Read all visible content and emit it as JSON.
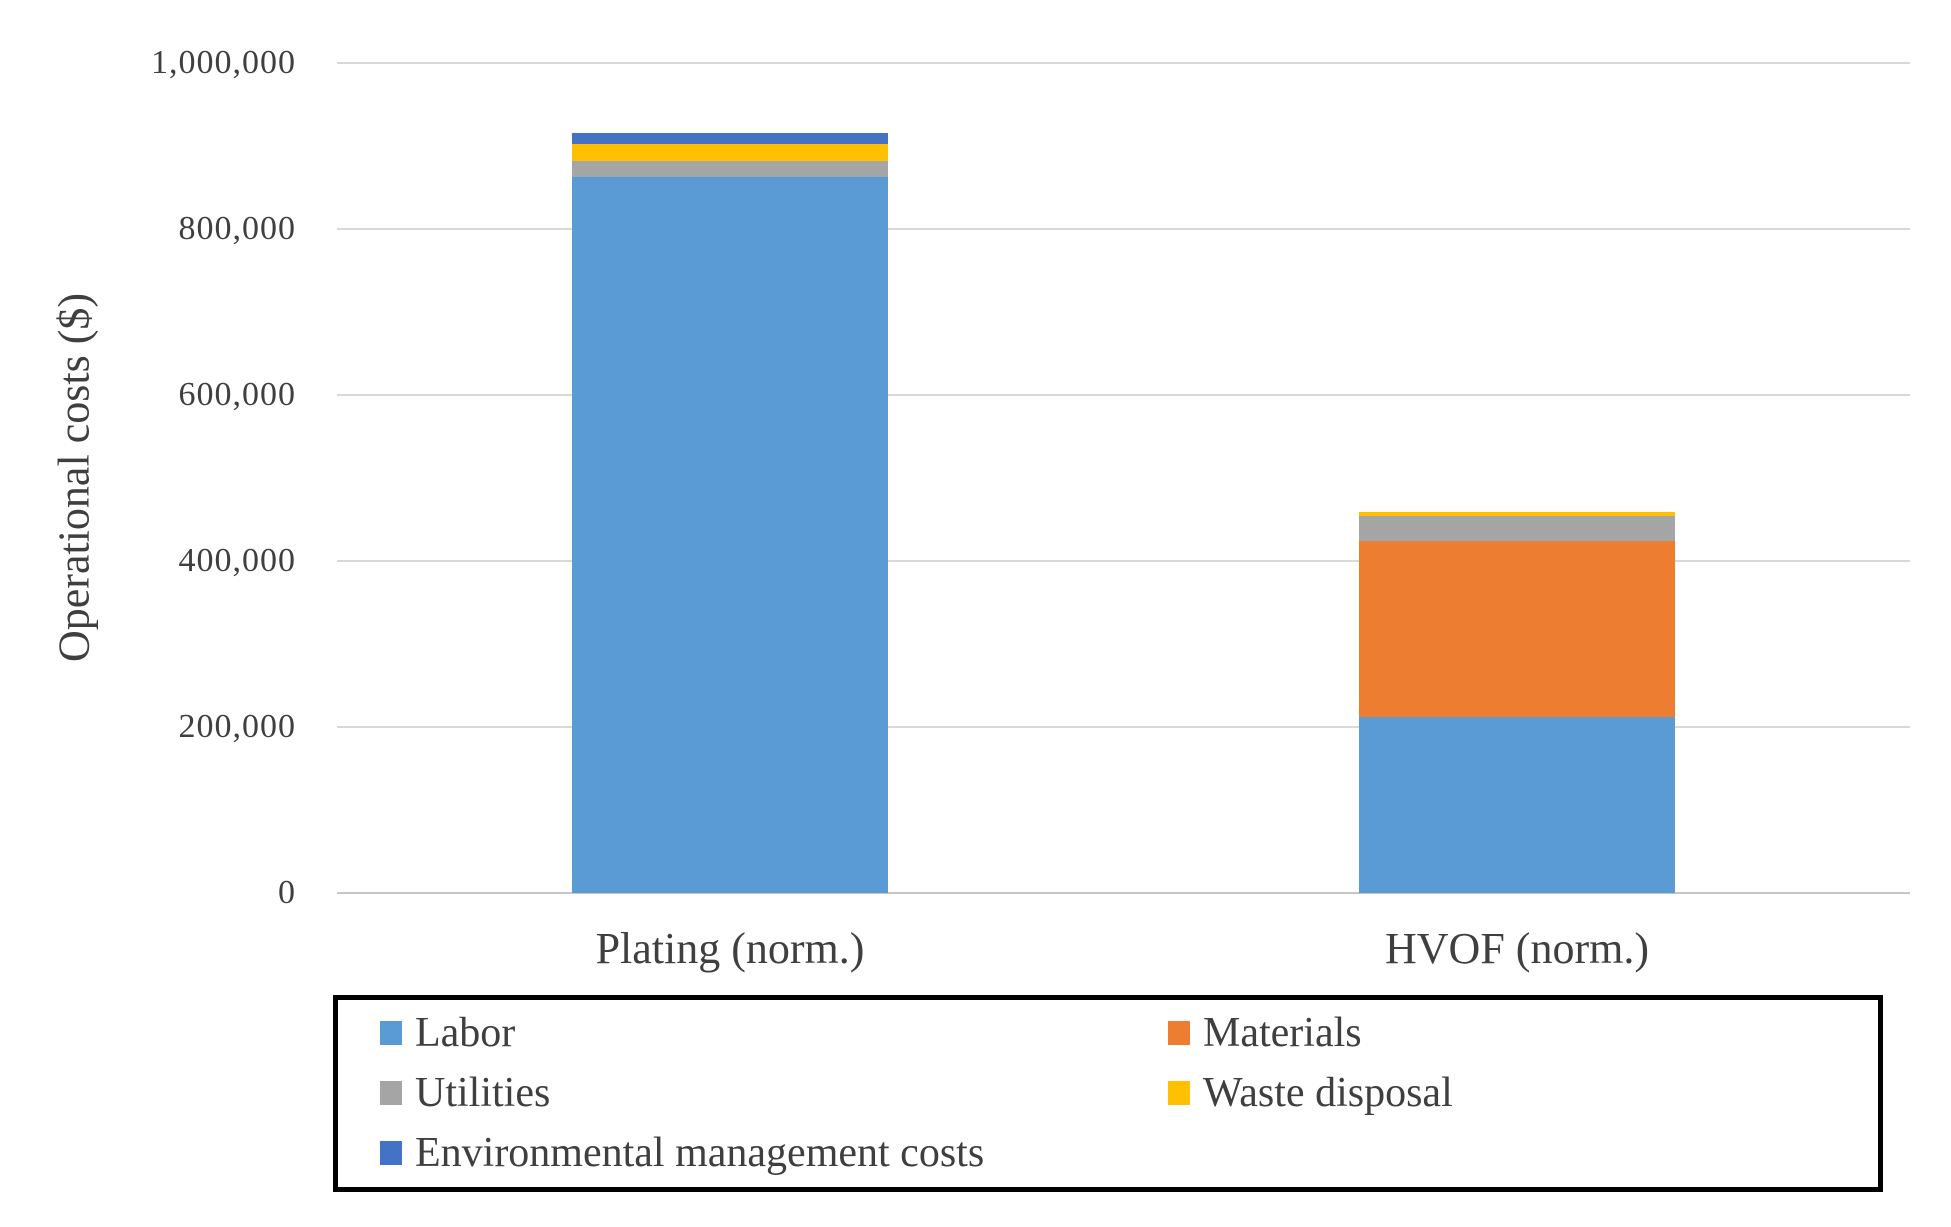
{
  "figure": {
    "background": "#FFFFFF"
  },
  "chart_data": {
    "type": "bar",
    "stacked": true,
    "title": "",
    "ylabel": "Operational costs ($)",
    "xlabel": "",
    "ylim": [
      0,
      1000000
    ],
    "ytick_step": 200000,
    "yticks": [
      {
        "value": 1000000,
        "label": "1,000,000"
      },
      {
        "value": 800000,
        "label": "800,000"
      },
      {
        "value": 600000,
        "label": "600,000"
      },
      {
        "value": 400000,
        "label": "400,000"
      },
      {
        "value": 200000,
        "label": "200,000"
      },
      {
        "value": 0,
        "label": "0"
      }
    ],
    "categories": [
      "Plating (norm.)",
      "HVOF (norm.)"
    ],
    "series": [
      {
        "name": "Labor",
        "color": "#5B9BD5",
        "values": [
          863000,
          212000
        ]
      },
      {
        "name": "Materials",
        "color": "#ED7D31",
        "values": [
          0,
          212000
        ]
      },
      {
        "name": "Utilities",
        "color": "#A5A5A5",
        "values": [
          19000,
          30000
        ]
      },
      {
        "name": "Waste disposal",
        "color": "#FFC000",
        "values": [
          21000,
          5000
        ]
      },
      {
        "name": "Environmental management costs",
        "color": "#4472C4",
        "values": [
          13000,
          0
        ]
      }
    ],
    "stack_totals": [
      916000,
      459000
    ],
    "grid": true,
    "gridline_color": "#D9D9D9",
    "axis_line_color": "#C6C6C6",
    "text_color": "#3F3F3F",
    "legend_position": "bottom",
    "legend_border_color": "#000000"
  }
}
